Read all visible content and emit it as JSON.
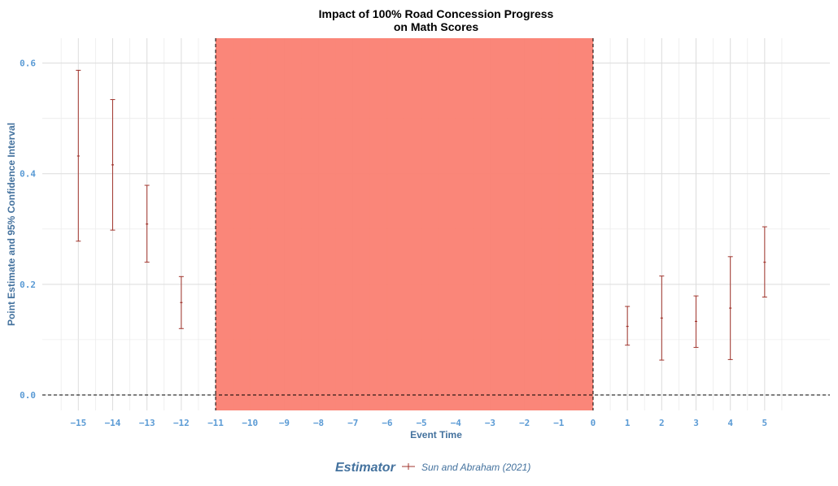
{
  "chart_data": {
    "type": "errorbar",
    "title_line1": "Impact of 100% Road Concession Progress",
    "title_line2": "on Math Scores",
    "xlabel": "Event Time",
    "ylabel": "Point Estimate and 95% Confidence Interval",
    "xlim": [
      -16.05,
      6.9
    ],
    "ylim": [
      -0.028,
      0.645
    ],
    "x_ticks": [
      -15,
      -14,
      -13,
      -12,
      -11,
      -10,
      -9,
      -8,
      -7,
      -6,
      -5,
      -4,
      -3,
      -2,
      -1,
      0,
      1,
      2,
      3,
      4,
      5
    ],
    "x_tick_labels": [
      "−15",
      "−14",
      "−13",
      "−12",
      "−11",
      "−10",
      "−9",
      "−8",
      "−7",
      "−6",
      "−5",
      "−4",
      "−3",
      "−2",
      "−1",
      "0",
      "1",
      "2",
      "3",
      "4",
      "5"
    ],
    "y_ticks": [
      0.0,
      0.2,
      0.4,
      0.6
    ],
    "y_tick_labels": [
      "0.0",
      "0.2",
      "0.4",
      "0.6"
    ],
    "grid": true,
    "shaded_region": {
      "x_start": -11,
      "x_end": 0,
      "color": "#fa8072"
    },
    "reference_line_y": 0,
    "series": [
      {
        "name": "Sun and Abraham (2021)",
        "color": "#a0342c",
        "points": [
          {
            "x": -15,
            "estimate": 0.432,
            "ci_low": 0.278,
            "ci_high": 0.587
          },
          {
            "x": -14,
            "estimate": 0.416,
            "ci_low": 0.298,
            "ci_high": 0.534
          },
          {
            "x": -13,
            "estimate": 0.309,
            "ci_low": 0.24,
            "ci_high": 0.379
          },
          {
            "x": -12,
            "estimate": 0.167,
            "ci_low": 0.12,
            "ci_high": 0.214
          },
          {
            "x": 1,
            "estimate": 0.124,
            "ci_low": 0.09,
            "ci_high": 0.16
          },
          {
            "x": 2,
            "estimate": 0.139,
            "ci_low": 0.063,
            "ci_high": 0.215
          },
          {
            "x": 3,
            "estimate": 0.133,
            "ci_low": 0.086,
            "ci_high": 0.179
          },
          {
            "x": 4,
            "estimate": 0.157,
            "ci_low": 0.064,
            "ci_high": 0.25
          },
          {
            "x": 5,
            "estimate": 0.24,
            "ci_low": 0.177,
            "ci_high": 0.304
          }
        ]
      }
    ],
    "legend": {
      "title": "Estimator",
      "position": "bottom"
    }
  }
}
